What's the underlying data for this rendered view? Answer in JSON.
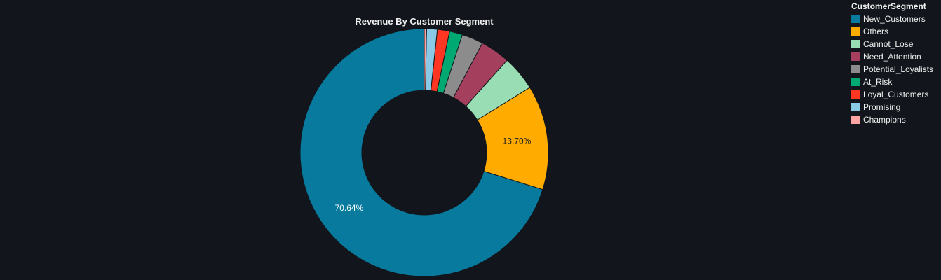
{
  "chart_data": {
    "type": "pie",
    "donut": true,
    "title": "Revenue By Customer Segment",
    "legend_title": "CustomerSegment",
    "legend_position": "top-right",
    "categories": [
      "New_Customers",
      "Others",
      "Cannot_Lose",
      "Need_Attention",
      "Potential_Loyalists",
      "At_Risk",
      "Loyal_Customers",
      "Promising",
      "Champions"
    ],
    "values": [
      70.64,
      13.7,
      4.6,
      3.9,
      2.8,
      1.7,
      1.6,
      1.4,
      0.3
    ],
    "colors": [
      "#077a9d",
      "#ffab00",
      "#99ddb4",
      "#a4405d",
      "#8c8c8c",
      "#00a972",
      "#ff3621",
      "#8bcae7",
      "#fca4a1"
    ],
    "visible_labels": {
      "New_Customers": "70.64%",
      "Others": "13.70%"
    },
    "label_colors": {
      "New_Customers": "#ffffff",
      "Others": "#1b1b1b"
    }
  }
}
